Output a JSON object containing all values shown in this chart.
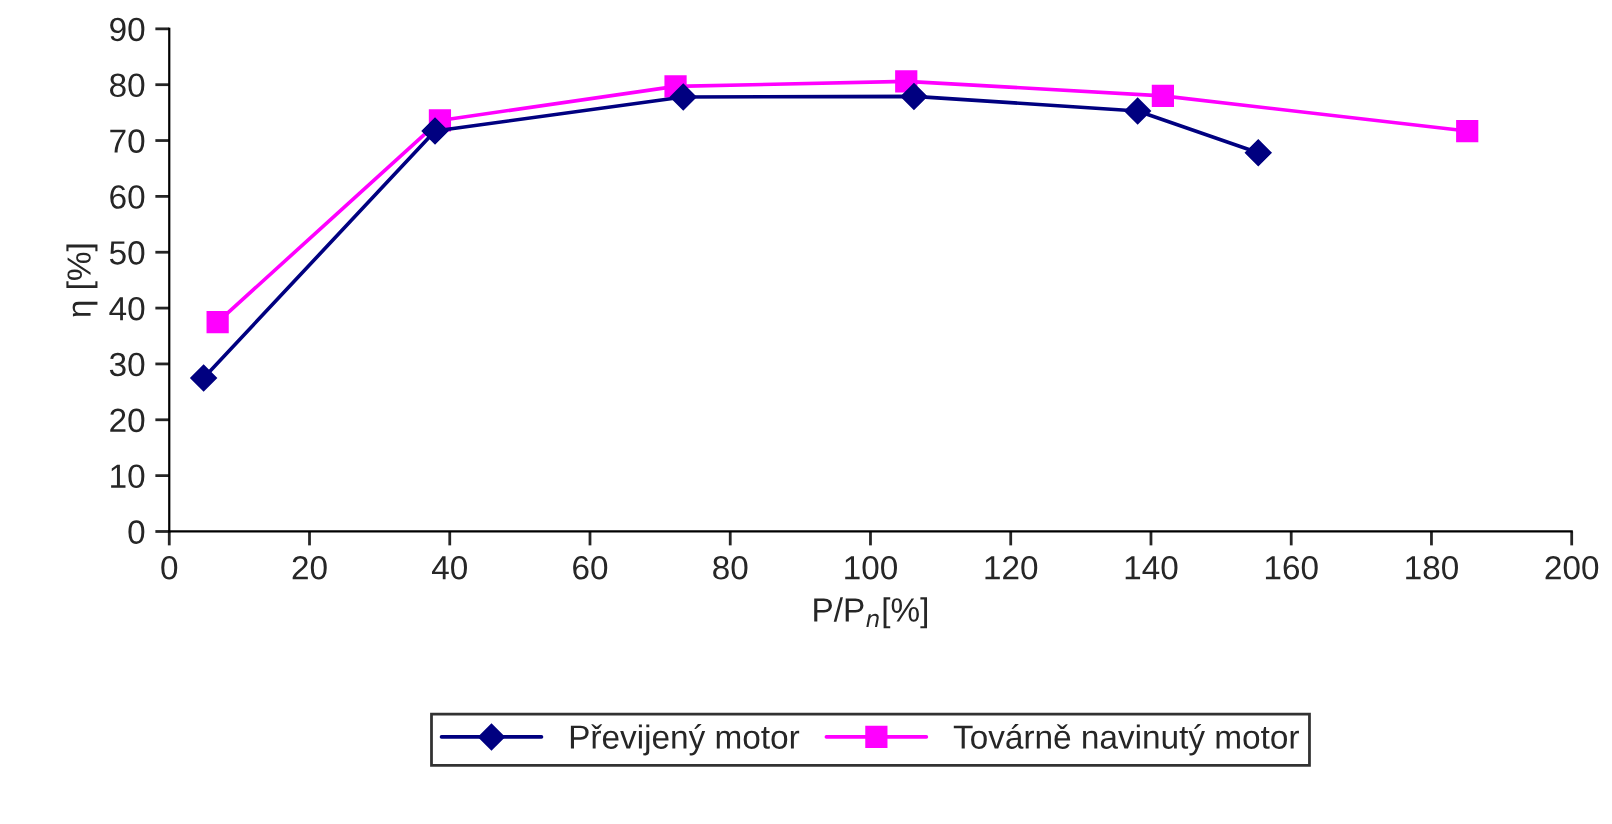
{
  "chart_data": {
    "type": "line",
    "xlabel": "P/P$_{n}$[%]",
    "ylabel": "η [%]",
    "xlim": [
      0,
      200
    ],
    "xticks": [
      0,
      20,
      40,
      60,
      80,
      100,
      120,
      140,
      160,
      180,
      200
    ],
    "ylim": [
      0,
      90
    ],
    "yticks": [
      0,
      10,
      20,
      30,
      40,
      50,
      60,
      70,
      80,
      90
    ],
    "grid": false,
    "legend": "bottom",
    "line_style": "solid",
    "series": [
      {
        "name": "Převijený motor",
        "color": "#000080",
        "marker": "diamond",
        "x": [
          4.9,
          37.9,
          73.3,
          106.2,
          138.1,
          155.3
        ],
        "values": [
          27.5,
          71.7,
          77.8,
          77.9,
          75.3,
          67.8
        ]
      },
      {
        "name": "Továrně navinutý motor",
        "color": "#ff00ff",
        "marker": "square",
        "x": [
          6.9,
          38.6,
          72.2,
          105.1,
          141.7,
          185.1
        ],
        "values": [
          37.5,
          73.6,
          79.7,
          80.6,
          78.0,
          71.7
        ]
      }
    ]
  }
}
